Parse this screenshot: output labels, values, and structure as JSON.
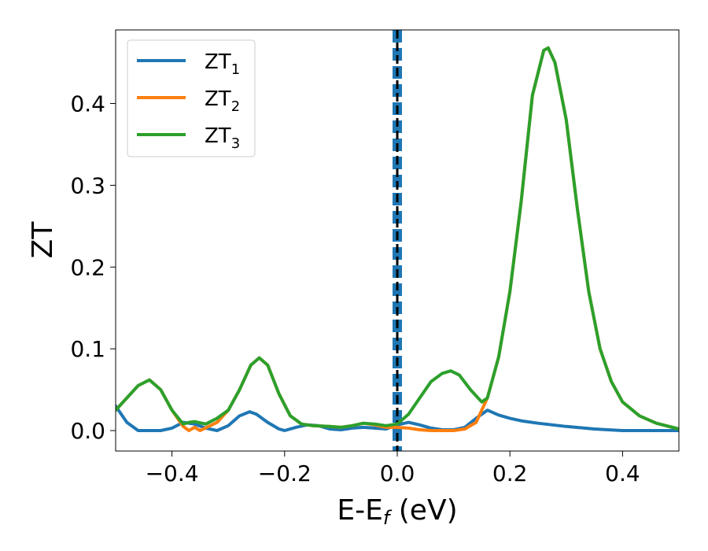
{
  "chart_data": {
    "type": "line",
    "title": "",
    "xlabel": "E-E",
    "xlabel_sub": "f",
    "xlabel_suffix": " (eV)",
    "ylabel": "ZT",
    "xlim": [
      -0.5,
      0.5
    ],
    "ylim": [
      -0.025,
      0.49
    ],
    "xticks": [
      -0.4,
      -0.2,
      0.0,
      0.2,
      0.4
    ],
    "xtick_labels": [
      "−0.4",
      "−0.2",
      "0.0",
      "0.2",
      "0.4"
    ],
    "yticks": [
      0.0,
      0.1,
      0.2,
      0.3,
      0.4
    ],
    "ytick_labels": [
      "0.0",
      "0.1",
      "0.2",
      "0.3",
      "0.4"
    ],
    "grid": false,
    "legend_position": "top-left",
    "vertical_lines": [
      {
        "x": 0.0,
        "style": "dashed",
        "color": "#1f77b4",
        "thickness": "thick"
      },
      {
        "x": 0.0,
        "style": "dashed",
        "color": "#000000",
        "thickness": "thin"
      }
    ],
    "series": [
      {
        "name": "ZT",
        "name_sub": "1",
        "color": "#1f77b4",
        "points": [
          [
            -0.5,
            0.03
          ],
          [
            -0.48,
            0.01
          ],
          [
            -0.46,
            0.0
          ],
          [
            -0.44,
            0.0
          ],
          [
            -0.42,
            0.0
          ],
          [
            -0.4,
            0.003
          ],
          [
            -0.38,
            0.01
          ],
          [
            -0.36,
            0.008
          ],
          [
            -0.34,
            0.003
          ],
          [
            -0.32,
            0.0
          ],
          [
            -0.3,
            0.006
          ],
          [
            -0.28,
            0.018
          ],
          [
            -0.262,
            0.023
          ],
          [
            -0.25,
            0.02
          ],
          [
            -0.23,
            0.01
          ],
          [
            -0.21,
            0.002
          ],
          [
            -0.2,
            0.0
          ],
          [
            -0.18,
            0.004
          ],
          [
            -0.16,
            0.007
          ],
          [
            -0.14,
            0.006
          ],
          [
            -0.12,
            0.002
          ],
          [
            -0.1,
            0.001
          ],
          [
            -0.08,
            0.003
          ],
          [
            -0.06,
            0.004
          ],
          [
            -0.04,
            0.003
          ],
          [
            -0.02,
            0.002
          ],
          [
            0.0,
            0.007
          ],
          [
            0.02,
            0.01
          ],
          [
            0.04,
            0.007
          ],
          [
            0.06,
            0.003
          ],
          [
            0.08,
            0.001
          ],
          [
            0.1,
            0.001
          ],
          [
            0.12,
            0.004
          ],
          [
            0.14,
            0.015
          ],
          [
            0.16,
            0.025
          ],
          [
            0.18,
            0.019
          ],
          [
            0.2,
            0.015
          ],
          [
            0.22,
            0.012
          ],
          [
            0.25,
            0.009
          ],
          [
            0.3,
            0.005
          ],
          [
            0.35,
            0.002
          ],
          [
            0.4,
            0.0
          ],
          [
            0.45,
            0.0
          ],
          [
            0.5,
            0.0
          ]
        ]
      },
      {
        "name": "ZT",
        "name_sub": "2",
        "color": "#ff7f0e",
        "points": [
          [
            -0.5,
            0.025
          ],
          [
            -0.48,
            0.04
          ],
          [
            -0.46,
            0.055
          ],
          [
            -0.44,
            0.062
          ],
          [
            -0.42,
            0.05
          ],
          [
            -0.4,
            0.025
          ],
          [
            -0.38,
            0.005
          ],
          [
            -0.37,
            0.0
          ],
          [
            -0.36,
            0.004
          ],
          [
            -0.35,
            0.0
          ],
          [
            -0.32,
            0.01
          ],
          [
            -0.3,
            0.025
          ],
          [
            -0.28,
            0.05
          ],
          [
            -0.26,
            0.08
          ],
          [
            -0.245,
            0.089
          ],
          [
            -0.23,
            0.08
          ],
          [
            -0.21,
            0.045
          ],
          [
            -0.19,
            0.018
          ],
          [
            -0.17,
            0.008
          ],
          [
            -0.15,
            0.006
          ],
          [
            -0.12,
            0.005
          ],
          [
            -0.1,
            0.004
          ],
          [
            -0.08,
            0.006
          ],
          [
            -0.06,
            0.009
          ],
          [
            -0.04,
            0.007
          ],
          [
            -0.02,
            0.004
          ],
          [
            0.0,
            0.004
          ],
          [
            0.02,
            0.003
          ],
          [
            0.04,
            0.001
          ],
          [
            0.06,
            0.0
          ],
          [
            0.08,
            0.0
          ],
          [
            0.1,
            0.0
          ],
          [
            0.12,
            0.002
          ],
          [
            0.14,
            0.01
          ],
          [
            0.16,
            0.04
          ],
          [
            0.18,
            0.09
          ],
          [
            0.2,
            0.17
          ],
          [
            0.22,
            0.28
          ],
          [
            0.24,
            0.41
          ],
          [
            0.26,
            0.465
          ],
          [
            0.268,
            0.468
          ],
          [
            0.28,
            0.45
          ],
          [
            0.3,
            0.38
          ],
          [
            0.32,
            0.27
          ],
          [
            0.34,
            0.17
          ],
          [
            0.36,
            0.1
          ],
          [
            0.38,
            0.06
          ],
          [
            0.4,
            0.035
          ],
          [
            0.43,
            0.018
          ],
          [
            0.46,
            0.009
          ],
          [
            0.5,
            0.002
          ]
        ]
      },
      {
        "name": "ZT",
        "name_sub": "3",
        "color": "#2ca02c",
        "points": [
          [
            -0.5,
            0.025
          ],
          [
            -0.48,
            0.04
          ],
          [
            -0.46,
            0.055
          ],
          [
            -0.44,
            0.062
          ],
          [
            -0.42,
            0.05
          ],
          [
            -0.4,
            0.025
          ],
          [
            -0.38,
            0.008
          ],
          [
            -0.37,
            0.01
          ],
          [
            -0.36,
            0.011
          ],
          [
            -0.34,
            0.008
          ],
          [
            -0.32,
            0.015
          ],
          [
            -0.3,
            0.025
          ],
          [
            -0.28,
            0.05
          ],
          [
            -0.26,
            0.08
          ],
          [
            -0.245,
            0.089
          ],
          [
            -0.23,
            0.08
          ],
          [
            -0.21,
            0.045
          ],
          [
            -0.19,
            0.018
          ],
          [
            -0.17,
            0.008
          ],
          [
            -0.15,
            0.006
          ],
          [
            -0.12,
            0.005
          ],
          [
            -0.1,
            0.004
          ],
          [
            -0.08,
            0.006
          ],
          [
            -0.06,
            0.009
          ],
          [
            -0.04,
            0.008
          ],
          [
            -0.02,
            0.006
          ],
          [
            0.0,
            0.008
          ],
          [
            0.02,
            0.02
          ],
          [
            0.04,
            0.04
          ],
          [
            0.06,
            0.06
          ],
          [
            0.08,
            0.07
          ],
          [
            0.095,
            0.073
          ],
          [
            0.11,
            0.068
          ],
          [
            0.13,
            0.05
          ],
          [
            0.15,
            0.035
          ],
          [
            0.16,
            0.04
          ],
          [
            0.18,
            0.09
          ],
          [
            0.2,
            0.17
          ],
          [
            0.22,
            0.28
          ],
          [
            0.24,
            0.41
          ],
          [
            0.26,
            0.465
          ],
          [
            0.268,
            0.468
          ],
          [
            0.28,
            0.45
          ],
          [
            0.3,
            0.38
          ],
          [
            0.32,
            0.27
          ],
          [
            0.34,
            0.17
          ],
          [
            0.36,
            0.1
          ],
          [
            0.38,
            0.06
          ],
          [
            0.4,
            0.035
          ],
          [
            0.43,
            0.018
          ],
          [
            0.46,
            0.009
          ],
          [
            0.5,
            0.002
          ]
        ]
      }
    ]
  }
}
